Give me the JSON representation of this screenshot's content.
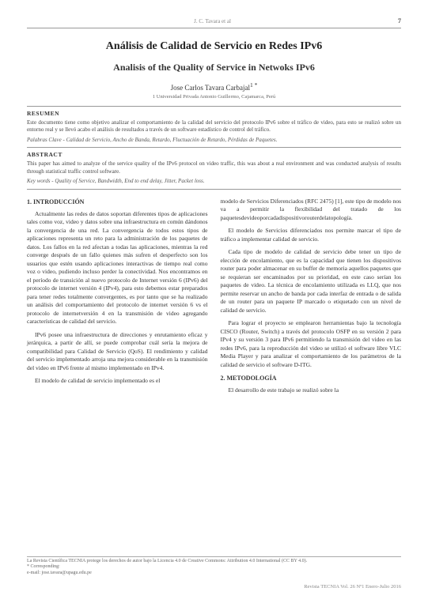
{
  "header": {
    "running_head": "J. C. Tavara et al",
    "page_number": "7"
  },
  "titles": {
    "es": "Análisis de Calidad de Servicio en Redes IPv6",
    "en": "Analisis of the Quality of Service in Netwoks IPv6"
  },
  "author": "Jose Carlos Tavara Carbajal",
  "author_marks": "1 *",
  "affiliation": "1 Universidad Privada Antonio Guillermo, Cajamarca, Perú",
  "resumen": {
    "head": "RESUMEN",
    "body": "Este documento tiene como objetivo analizar el comportamiento de la calidad del servicio del protocolo IPv6 sobre el tráfico de video, para esto se realizó sobre un entorno real y se llevó acabo el análisis de resultados a través de un software estadístico de control del tráfico.",
    "keywords": "Palabras Clave - Calidad de Servicio, Ancho de Banda, Retardo, Fluctuación de Retardo, Pérdidas de Paquetes."
  },
  "abstract": {
    "head": "ABSTRACT",
    "body": "This paper has aimed to analyze of the service quality of the IPv6 protocol on video traffic, this was about a real environment and was conducted analysis of results through statistical traffic control software.",
    "keywords": "Key words - Quality of Service, Bandwidth, End to end delay, Jitter, Packet loss."
  },
  "sections": {
    "intro_head": "1. INTRODUCCIÓN",
    "intro_p1": "Actualmente las redes de datos soportan diferentes tipos de aplicaciones tales como voz, video y datos sobre una infraestructura en común dándonos la convergencia de una red. La convergencia de todos estos tipos de aplicaciones representa un reto para la administración de los paquetes de datos. Los fallos en la red afectan a todas las aplicaciones, mientras la red converge después de un fallo quienes más sufren el desperfecto son los usuarios que estén usando aplicaciones interactivas de tiempo real como voz o video, pudiendo incluso perder la conectividad. Nos encontramos en el período de transición al nuevo protocolo de Internet versión 6 (IPv6) del protocolo de internet versión 4 (IPv4), para esto debemos estar preparados para tener redes totalmente convergentes, es por tanto que se ha realizado un análisis del comportamiento del protocolo de internet versión 6 vs el protocolo de internetversión 4 en la transmisión de video agregando características de calidad del servicio.",
    "intro_p2": "IPv6 posee una infraestructura de direcciones y enrutamiento eficaz y jerárquica, a partir de allí, se puede comprobar cuál sería la mejora de compatibilidad para Calidad de Servicio (QoS). El rendimiento y calidad del servicio implementado arroja una mejora considerable en la transmisión del video en IPv6 frente al mismo implementado en IPv4.",
    "intro_p3": "El modelo de calidad de servicio implementado es el",
    "col2_p1": "modelo de Servicios Diferenciados (RFC 2475) [1], este tipo de modelo nos va a permitir la flexibilidad del tratado de los paquetesdevideoporcadadispositivorouterdelatopología.",
    "col2_p2": "El modelo de Servicios diferenciados nos permite marcar el tipo de tráfico a implementar calidad de servicio.",
    "col2_p3": "Cada tipo de modelo de calidad de servicio debe tener un tipo de elección de encolamiento, que es la capacidad que tienen los dispositivos router para poder almacenar en su buffer de memoria aquellos paquetes que se requieran ser encaminados por su prioridad, en este caso serían los paquetes de video. La técnica de encolamiento utilizada es LLQ, que nos permite reservar un ancho de banda por cada interfaz de entrada o de salida de un router para un paquete IP marcado o etiquetado con un nivel de calidad de servicio.",
    "col2_p4": "Para lograr el proyecto se emplearon herramientas bajo la tecnología CISCO (Router, Switch) a través del protocolo OSFP en su versión 2 para IPv4 y su versión 3 para IPv6 permitiendo la transmisión del video en las redes IPv6, para la reproducción del video se utilizó el software libre VLC Media Player y para analizar el comportamiento de los parámetros de la calidad de servicio el software D-ITG.",
    "metod_head": "2. METODOLOGÍA",
    "metod_p1": "El desarrollo de este trabajo se realizó sobre   la"
  },
  "footnotes": {
    "line1": "La Revista Científica TECNIA protege los derechos de autor bajo la Licencia 4.0 de Creative Commons: Attribution 4.0 International (CC BY 4.0).",
    "line2": "* Corresponding:",
    "line3": "e-mail: jose.tavara@upagu.edu.pe"
  },
  "footer": "Revista TECNIA Vol. 26 Nº1 Enero-Julio 2016"
}
